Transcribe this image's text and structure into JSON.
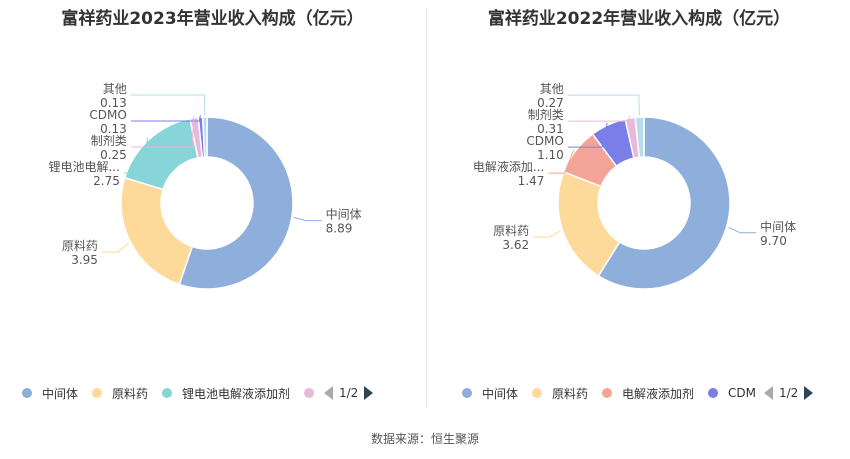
{
  "source_text": "数据来源：恒生聚源",
  "pager_text": "1/2",
  "chart_data": [
    {
      "type": "pie",
      "title": "富祥药业2023年营业收入构成（亿元）",
      "slices": [
        {
          "label": "中间体",
          "value": 8.89,
          "color": "#8eaedb"
        },
        {
          "label": "原料药",
          "value": 3.95,
          "color": "#fdd99a"
        },
        {
          "label": "锂电池电解液添加剂",
          "display_label": "锂电池电解...",
          "value": 2.75,
          "color": "#87d4d9"
        },
        {
          "label": "制剂类",
          "value": 0.25,
          "color": "#e9b8d8"
        },
        {
          "label": "CDMO",
          "value": 0.13,
          "color": "#7b7de8"
        },
        {
          "label": "其他",
          "value": 0.13,
          "color": "#b6dcee"
        }
      ],
      "legend_visible": [
        "中间体",
        "原料药",
        "锂电池电解液添加剂",
        ""
      ],
      "legend_position": "bottom"
    },
    {
      "type": "pie",
      "title": "富祥药业2022年营业收入构成（亿元）",
      "slices": [
        {
          "label": "中间体",
          "value": 9.7,
          "color": "#8eaedb"
        },
        {
          "label": "原料药",
          "value": 3.62,
          "color": "#fdd99a"
        },
        {
          "label": "电解液添加剂",
          "display_label": "电解液添加...",
          "value": 1.47,
          "color": "#f4a397"
        },
        {
          "label": "CDMO",
          "value": 1.1,
          "color": "#7b7de8"
        },
        {
          "label": "制剂类",
          "value": 0.31,
          "color": "#e9b8d8"
        },
        {
          "label": "其他",
          "value": 0.27,
          "color": "#b6dcee"
        }
      ],
      "legend_visible": [
        "中间体",
        "原料药",
        "电解液添加剂",
        "CDM"
      ],
      "legend_position": "bottom"
    }
  ]
}
